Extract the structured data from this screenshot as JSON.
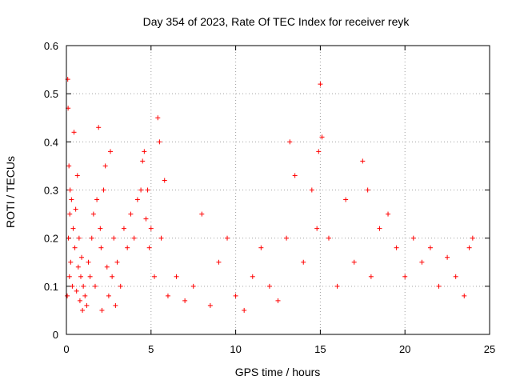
{
  "chart_data": {
    "type": "scatter",
    "title": "Day 354 of 2023, Rate Of TEC Index for receiver reyk",
    "xlabel": "GPS time / hours",
    "ylabel": "ROTI / TECUs",
    "xlim": [
      0,
      25
    ],
    "ylim": [
      0,
      0.6
    ],
    "xticks": [
      0,
      5,
      10,
      15,
      20,
      25
    ],
    "yticks": [
      0,
      0.1,
      0.2,
      0.3,
      0.4,
      0.5,
      0.6
    ],
    "grid": true,
    "marker": "+",
    "series_color": "#ff0000",
    "series": [
      {
        "name": "reyk",
        "x": [
          0.05,
          0.08,
          0.1,
          0.12,
          0.15,
          0.18,
          0.2,
          0.22,
          0.25,
          0.3,
          0.35,
          0.4,
          0.45,
          0.5,
          0.55,
          0.6,
          0.65,
          0.7,
          0.75,
          0.8,
          0.85,
          0.9,
          0.95,
          1.0,
          1.1,
          1.2,
          1.3,
          1.4,
          1.5,
          1.6,
          1.7,
          1.8,
          1.9,
          2.0,
          2.05,
          2.1,
          2.2,
          2.3,
          2.4,
          2.5,
          2.6,
          2.7,
          2.8,
          2.9,
          3.0,
          3.2,
          3.4,
          3.6,
          3.8,
          4.0,
          4.2,
          4.4,
          4.5,
          4.6,
          4.7,
          4.8,
          4.9,
          5.0,
          5.2,
          5.4,
          5.5,
          5.6,
          5.8,
          6.0,
          6.5,
          7.0,
          7.5,
          8.0,
          8.5,
          9.0,
          9.5,
          10.0,
          10.5,
          11.0,
          11.5,
          12.0,
          12.5,
          13.0,
          13.2,
          13.5,
          14.0,
          14.5,
          14.8,
          14.9,
          15.0,
          15.1,
          15.5,
          16.0,
          16.5,
          17.0,
          17.5,
          17.8,
          18.0,
          18.5,
          19.0,
          19.5,
          20.0,
          20.5,
          21.0,
          21.5,
          22.0,
          22.5,
          23.0,
          23.5,
          23.8,
          24.0
        ],
        "y": [
          0.08,
          0.53,
          0.47,
          0.2,
          0.35,
          0.12,
          0.25,
          0.3,
          0.15,
          0.28,
          0.1,
          0.22,
          0.42,
          0.18,
          0.26,
          0.09,
          0.33,
          0.14,
          0.2,
          0.07,
          0.12,
          0.16,
          0.05,
          0.1,
          0.08,
          0.06,
          0.15,
          0.12,
          0.2,
          0.25,
          0.1,
          0.28,
          0.43,
          0.22,
          0.18,
          0.05,
          0.3,
          0.35,
          0.14,
          0.08,
          0.38,
          0.12,
          0.2,
          0.06,
          0.15,
          0.1,
          0.22,
          0.18,
          0.25,
          0.2,
          0.28,
          0.3,
          0.36,
          0.38,
          0.24,
          0.3,
          0.18,
          0.22,
          0.12,
          0.45,
          0.4,
          0.2,
          0.32,
          0.08,
          0.12,
          0.07,
          0.1,
          0.25,
          0.06,
          0.15,
          0.2,
          0.08,
          0.05,
          0.12,
          0.18,
          0.1,
          0.07,
          0.2,
          0.4,
          0.33,
          0.15,
          0.3,
          0.22,
          0.38,
          0.52,
          0.41,
          0.2,
          0.1,
          0.28,
          0.15,
          0.36,
          0.3,
          0.12,
          0.22,
          0.25,
          0.18,
          0.12,
          0.2,
          0.15,
          0.18,
          0.1,
          0.16,
          0.12,
          0.08,
          0.18,
          0.2
        ]
      }
    ]
  }
}
